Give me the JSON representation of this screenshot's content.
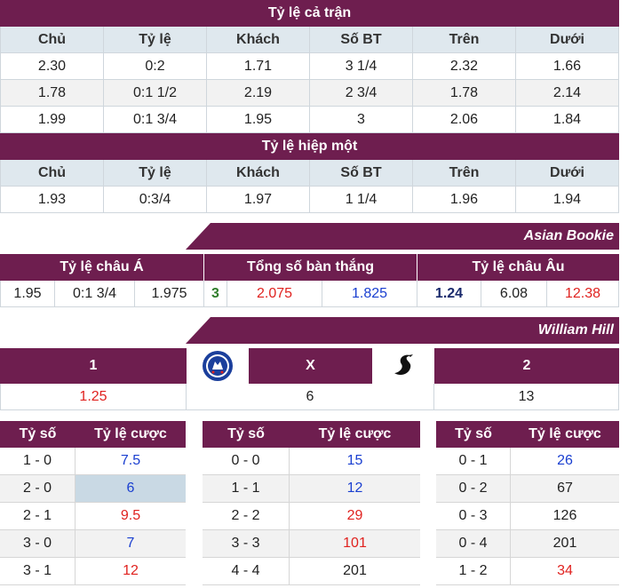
{
  "full_match": {
    "title": "Tỷ lệ cả trận",
    "headers": [
      "Chủ",
      "Tỷ lệ",
      "Khách",
      "Số BT",
      "Trên",
      "Dưới"
    ],
    "rows": [
      [
        "2.30",
        "0:2",
        "1.71",
        "3 1/4",
        "2.32",
        "1.66"
      ],
      [
        "1.78",
        "0:1 1/2",
        "2.19",
        "2 3/4",
        "1.78",
        "2.14"
      ],
      [
        "1.99",
        "0:1 3/4",
        "1.95",
        "3",
        "2.06",
        "1.84"
      ]
    ]
  },
  "first_half": {
    "title": "Tỷ lệ hiệp một",
    "headers": [
      "Chủ",
      "Tỷ lệ",
      "Khách",
      "Số BT",
      "Trên",
      "Dưới"
    ],
    "rows": [
      [
        "1.93",
        "0:3/4",
        "1.97",
        "1 1/4",
        "1.96",
        "1.94"
      ]
    ]
  },
  "asian_bookie": {
    "label": "Asian Bookie",
    "headers": [
      "Tỷ lệ châu Á",
      "Tổng số bàn thắng",
      "Tỷ lệ châu Âu"
    ],
    "asian": [
      "1.95",
      "0:1 3/4",
      "1.975"
    ],
    "total": [
      "3",
      "2.075",
      "1.825"
    ],
    "euro": [
      "1.24",
      "6.08",
      "12.38"
    ]
  },
  "william_hill": {
    "label": "William Hill",
    "headers": [
      "1",
      "X",
      "2"
    ],
    "values": [
      "1.25",
      "6",
      "13"
    ],
    "home_logo": "chelsea-crest-icon",
    "away_logo": "swansea-swan-icon"
  },
  "scores": {
    "col_score": "Tỷ số",
    "col_odds": "Tỷ lệ cược",
    "home": [
      [
        "1 - 0",
        "7.5"
      ],
      [
        "2 - 0",
        "6"
      ],
      [
        "2 - 1",
        "9.5"
      ],
      [
        "3 - 0",
        "7"
      ],
      [
        "3 - 1",
        "12"
      ]
    ],
    "draw": [
      [
        "0 - 0",
        "15"
      ],
      [
        "1 - 1",
        "12"
      ],
      [
        "2 - 2",
        "29"
      ],
      [
        "3 - 3",
        "101"
      ],
      [
        "4 - 4",
        "201"
      ]
    ],
    "away": [
      [
        "0 - 1",
        "26"
      ],
      [
        "0 - 2",
        "67"
      ],
      [
        "0 - 3",
        "126"
      ],
      [
        "0 - 4",
        "201"
      ],
      [
        "1 - 2",
        "34"
      ]
    ]
  },
  "colors": {
    "brand": "#6e1e4f",
    "header_bg": "#dfe8ee",
    "red": "#e0221f",
    "blue": "#1a3fd0",
    "green": "#2f7d2a"
  }
}
